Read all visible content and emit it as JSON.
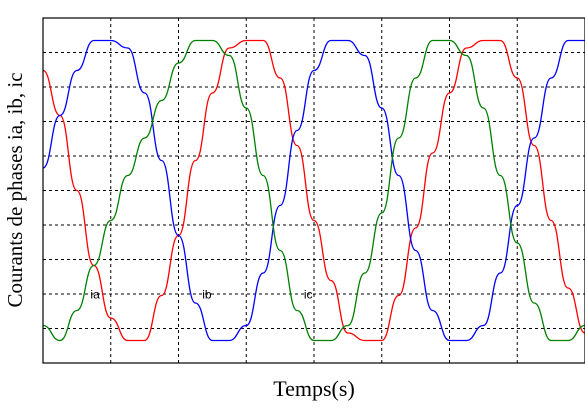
{
  "chart_data": {
    "type": "line",
    "title": "",
    "xlabel": "Temps(s)",
    "ylabel": "Courants de phases ia, ib, ic",
    "grid": true,
    "xlim": [
      0,
      8
    ],
    "ylim": [
      -1.15,
      1.15
    ],
    "series": [
      {
        "name": "ia",
        "color": "#ff0000",
        "x": [
          0,
          0.25,
          0.5,
          0.75,
          1.0,
          1.25,
          1.5,
          1.75,
          2.0,
          2.25,
          2.5,
          2.75,
          3.0,
          3.25,
          3.5,
          3.75,
          4.0,
          4.25,
          4.5,
          4.75,
          5.0,
          5.25,
          5.5,
          5.75,
          6.0,
          6.25,
          6.5,
          6.75,
          7.0,
          7.25,
          7.5,
          7.75,
          8.0
        ],
        "values": [
          0.8,
          0.5,
          0.0,
          -0.5,
          -0.85,
          -1.0,
          -1.0,
          -0.7,
          -0.3,
          0.2,
          0.65,
          0.95,
          1.0,
          1.0,
          0.75,
          0.3,
          -0.2,
          -0.6,
          -0.95,
          -1.0,
          -1.0,
          -0.7,
          -0.25,
          0.25,
          0.65,
          0.95,
          1.0,
          1.0,
          0.75,
          0.3,
          -0.2,
          -0.65,
          -0.95
        ]
      },
      {
        "name": "ib",
        "color": "#0000ff",
        "x": [
          0,
          0.25,
          0.5,
          0.75,
          1.0,
          1.25,
          1.5,
          1.75,
          2.0,
          2.25,
          2.5,
          2.75,
          3.0,
          3.25,
          3.5,
          3.75,
          4.0,
          4.25,
          4.5,
          4.75,
          5.0,
          5.25,
          5.5,
          5.75,
          6.0,
          6.25,
          6.5,
          6.75,
          7.0,
          7.25,
          7.5,
          7.75,
          8.0
        ],
        "values": [
          0.15,
          0.5,
          0.8,
          1.0,
          1.0,
          0.95,
          0.65,
          0.2,
          -0.3,
          -0.75,
          -1.0,
          -1.0,
          -0.9,
          -0.55,
          -0.1,
          0.4,
          0.8,
          1.0,
          1.0,
          0.9,
          0.55,
          0.1,
          -0.4,
          -0.8,
          -1.0,
          -1.0,
          -0.9,
          -0.55,
          -0.1,
          0.35,
          0.75,
          1.0,
          1.0
        ]
      },
      {
        "name": "ic",
        "color": "#008000",
        "x": [
          0,
          0.25,
          0.5,
          0.75,
          1.0,
          1.25,
          1.5,
          1.75,
          2.0,
          2.25,
          2.5,
          2.75,
          3.0,
          3.25,
          3.5,
          3.75,
          4.0,
          4.25,
          4.5,
          4.75,
          5.0,
          5.25,
          5.5,
          5.75,
          6.0,
          6.25,
          6.5,
          6.75,
          7.0,
          7.25,
          7.5,
          7.75,
          8.0
        ],
        "values": [
          -0.9,
          -1.0,
          -0.8,
          -0.5,
          -0.2,
          0.1,
          0.35,
          0.6,
          0.85,
          1.0,
          1.0,
          0.9,
          0.55,
          0.1,
          -0.4,
          -0.8,
          -1.0,
          -1.0,
          -0.9,
          -0.55,
          -0.15,
          0.35,
          0.75,
          1.0,
          1.0,
          0.9,
          0.55,
          0.1,
          -0.35,
          -0.75,
          -1.0,
          -1.0,
          -0.9
        ]
      }
    ]
  }
}
